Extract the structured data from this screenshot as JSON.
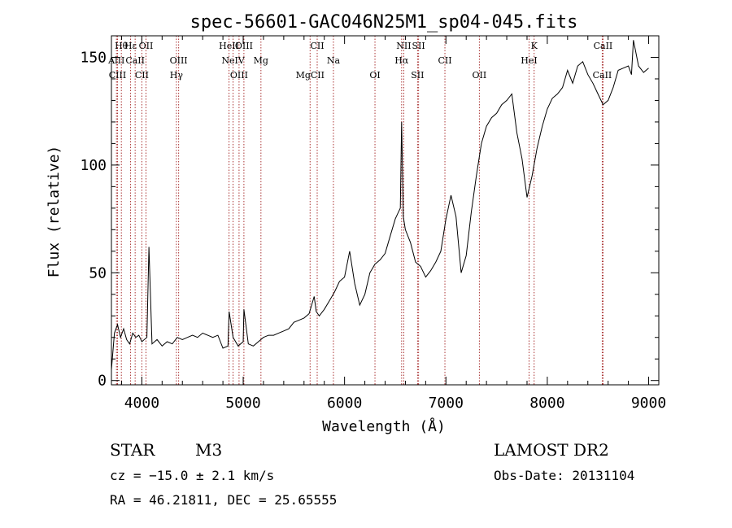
{
  "chart_data": {
    "type": "line",
    "title": "spec-56601-GAC046N25M1_sp04-045.fits",
    "xlabel": "Wavelength (Å)",
    "ylabel": "Flux (relative)",
    "xlim": [
      3700,
      9100
    ],
    "ylim": [
      -2,
      160
    ],
    "x_ticks": [
      4000,
      5000,
      6000,
      7000,
      8000,
      9000
    ],
    "y_ticks": [
      0,
      50,
      100,
      150
    ],
    "grid": false,
    "series": [
      {
        "x": [
          3700,
          3730,
          3760,
          3790,
          3820,
          3850,
          3880,
          3910,
          3940,
          3970,
          4000,
          4050,
          4070,
          4100,
          4150,
          4200,
          4250,
          4300,
          4350,
          4400,
          4450,
          4500,
          4550,
          4600,
          4650,
          4700,
          4750,
          4800,
          4850,
          4861,
          4900,
          4950,
          5000,
          5007,
          5050,
          5100,
          5150,
          5200,
          5250,
          5300,
          5350,
          5400,
          5450,
          5500,
          5550,
          5600,
          5650,
          5700,
          5720,
          5750,
          5800,
          5850,
          5900,
          5950,
          6000,
          6050,
          6100,
          6150,
          6200,
          6250,
          6300,
          6350,
          6400,
          6450,
          6500,
          6530,
          6550,
          6563,
          6580,
          6600,
          6650,
          6700,
          6750,
          6800,
          6850,
          6900,
          6950,
          7000,
          7050,
          7100,
          7150,
          7200,
          7250,
          7300,
          7350,
          7400,
          7450,
          7500,
          7550,
          7600,
          7650,
          7700,
          7750,
          7800,
          7850,
          7900,
          7950,
          8000,
          8050,
          8100,
          8150,
          8200,
          8250,
          8300,
          8350,
          8400,
          8450,
          8500,
          8550,
          8600,
          8650,
          8700,
          8750,
          8800,
          8830,
          8850,
          8900,
          8950,
          9000
        ],
        "y": [
          5,
          22,
          26,
          20,
          24,
          19,
          17,
          22,
          20,
          21,
          18,
          20,
          62,
          17,
          19,
          16,
          18,
          17,
          20,
          19,
          20,
          21,
          20,
          22,
          21,
          20,
          21,
          15,
          16,
          32,
          20,
          16,
          18,
          33,
          17,
          16,
          18,
          20,
          21,
          21,
          22,
          23,
          24,
          27,
          28,
          29,
          31,
          39,
          32,
          30,
          33,
          37,
          41,
          46,
          48,
          60,
          45,
          35,
          40,
          50,
          54,
          56,
          59,
          67,
          75,
          78,
          80,
          120,
          76,
          70,
          64,
          55,
          53,
          48,
          51,
          55,
          60,
          75,
          86,
          76,
          50,
          58,
          78,
          95,
          110,
          118,
          122,
          124,
          128,
          130,
          133,
          115,
          103,
          85,
          95,
          108,
          118,
          126,
          131,
          133,
          136,
          144,
          138,
          146,
          148,
          142,
          138,
          133,
          128,
          130,
          136,
          144,
          145,
          146,
          142,
          158,
          146,
          143,
          145
        ]
      }
    ],
    "annotations": [
      {
        "text": "Hθ",
        "wl": 3798
      },
      {
        "text": "AlII",
        "wl": 3750
      },
      {
        "text": "CIII",
        "wl": 3760
      },
      {
        "text": "Hε",
        "wl": 3889
      },
      {
        "text": "CaII",
        "wl": 3934
      },
      {
        "text": "CII",
        "wl": 4000
      },
      {
        "text": "OII",
        "wl": 4041
      },
      {
        "text": "OIII",
        "wl": 4363
      },
      {
        "text": "Hγ",
        "wl": 4341
      },
      {
        "text": "HeII",
        "wl": 4860
      },
      {
        "text": "NeIV",
        "wl": 4900
      },
      {
        "text": "OIII",
        "wl": 4959
      },
      {
        "text": "OIII",
        "wl": 5007
      },
      {
        "text": "Mg",
        "wl": 5175
      },
      {
        "text": "MgCII",
        "wl": 5660
      },
      {
        "text": "CII",
        "wl": 5730
      },
      {
        "text": "Na",
        "wl": 5890
      },
      {
        "text": "OI",
        "wl": 6300
      },
      {
        "text": "NII",
        "wl": 6584
      },
      {
        "text": "Hα",
        "wl": 6563
      },
      {
        "text": "SII",
        "wl": 6720
      },
      {
        "text": "SII",
        "wl": 6730
      },
      {
        "text": "CII",
        "wl": 6990
      },
      {
        "text": "OII",
        "wl": 7330
      },
      {
        "text": "K",
        "wl": 7870
      },
      {
        "text": "HeI",
        "wl": 7820
      },
      {
        "text": "CaII",
        "wl": 8542
      },
      {
        "text": "CaII",
        "wl": 8550
      }
    ]
  },
  "info": {
    "class": "STAR",
    "subclass": "M3",
    "survey": "LAMOST DR2",
    "cz": "cz = −15.0 ± 2.1 km/s",
    "obsdate": "Obs-Date: 20131104",
    "radec": "RA =  46.21811, DEC =  25.65555"
  },
  "style": {
    "line_color": "#000000",
    "marker_color": "#aa3333"
  }
}
